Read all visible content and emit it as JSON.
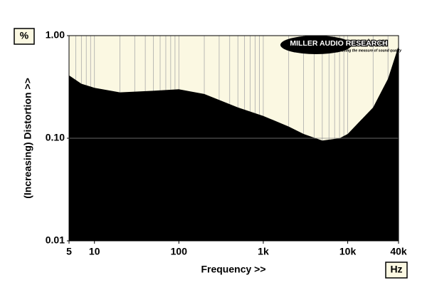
{
  "chart_data": {
    "type": "area",
    "y_unit": "%",
    "x_unit": "Hz",
    "xlabel": "Frequency >>",
    "ylabel": "(Increasing) Distortion >>",
    "logo": "MILLER AUDIO RESEARCH",
    "logo_tagline": "Getting the measure of sound quality",
    "x": [
      5,
      7,
      10,
      20,
      50,
      100,
      200,
      500,
      1000,
      2000,
      3000,
      5000,
      8000,
      10000,
      20000,
      30000,
      40000
    ],
    "values": [
      0.41,
      0.34,
      0.31,
      0.28,
      0.29,
      0.3,
      0.27,
      0.2,
      0.165,
      0.13,
      0.11,
      0.095,
      0.1,
      0.11,
      0.2,
      0.38,
      0.79
    ],
    "color": "#000000",
    "background": "#fbf8e2",
    "xlim": [
      5,
      40000
    ],
    "ylim": [
      0.01,
      1
    ],
    "xticks": [
      5,
      10,
      100,
      {
        "value": 1000,
        "label": "1k"
      },
      {
        "value": 10000,
        "label": "10k"
      },
      {
        "value": 40000,
        "label": "40k"
      }
    ],
    "yticks": [
      {
        "value": 0.01,
        "label": "0.01"
      },
      {
        "value": 0.1,
        "label": "0.10"
      },
      {
        "value": 1,
        "label": "1.00"
      }
    ],
    "xscale": "log",
    "yscale": "log",
    "grid": true,
    "minor_grid": true
  }
}
